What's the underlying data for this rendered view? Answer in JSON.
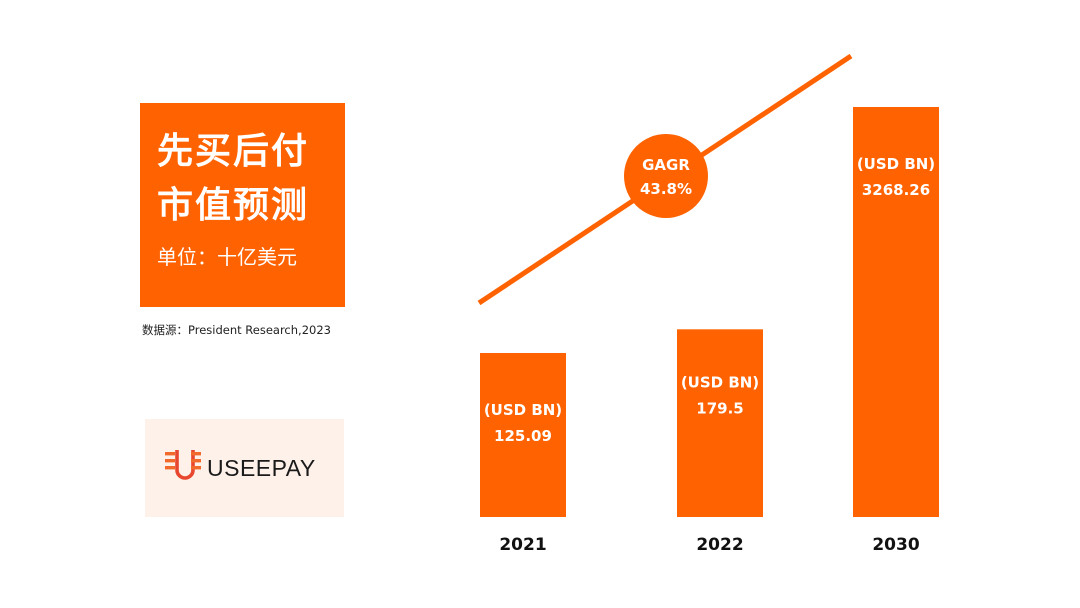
{
  "title": {
    "line1": "先买后付",
    "line2": "市值预测",
    "unit": "单位：十亿美元"
  },
  "source": "数据源：President Research,2023",
  "logo": {
    "text": "USEEPAY",
    "icon": "useepay-u-logo-icon"
  },
  "colors": {
    "brand": "#ff6200",
    "logo_bg": "#fdf1ea"
  },
  "chart_data": {
    "type": "bar",
    "categories": [
      "2021",
      "2022",
      "2030"
    ],
    "values": [
      125.09,
      179.5,
      3268.26
    ],
    "bar_unit_label": "(USD BN)",
    "value_labels": [
      "125.09",
      "179.5",
      "3268.26"
    ],
    "scale": "non-linear",
    "trend_line": true,
    "annotation": {
      "line1": "GAGR",
      "line2": "43.8%"
    }
  }
}
